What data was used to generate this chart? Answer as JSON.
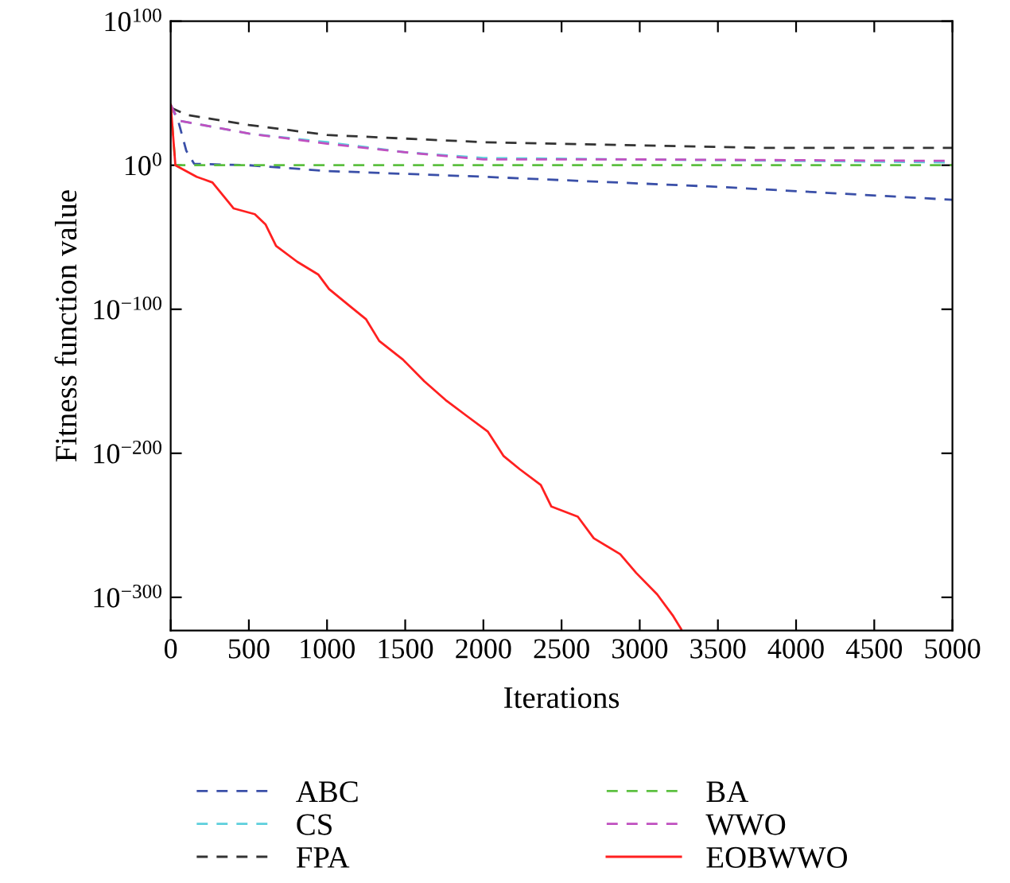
{
  "chart_data": {
    "type": "line",
    "xlabel": "Iterations",
    "ylabel": "Fitness function value",
    "log": "y",
    "xlim": [
      0,
      5000
    ],
    "xticks": [
      0,
      500,
      1000,
      1500,
      2000,
      2500,
      3000,
      3500,
      4000,
      4500,
      5000
    ],
    "ylim": [
      1e-323,
      1e+100
    ],
    "yticks": [
      {
        "value": 1e+100,
        "label": "10$^{100}$"
      },
      {
        "value": 1,
        "label": "10$^{0}$"
      },
      {
        "value": 1e-100,
        "label": "10$^{−100}$"
      },
      {
        "value": 1e-200,
        "label": "10$^{−200}$"
      },
      {
        "value": 1e-300,
        "label": "10$^{−300}$"
      }
    ],
    "grid": false,
    "legend": "bottom",
    "marker": "none",
    "series": [
      {
        "name": "ABC",
        "color": "#3a4fa8",
        "line_style": "dashed",
        "x": [
          0,
          50,
          100,
          150,
          500,
          1000,
          2000,
          3500,
          5000
        ],
        "values": [
          1e+42,
          1e+30,
          10000000000.0,
          10.0,
          1.0,
          0.0001,
          1e-08,
          1e-15,
          1e-24
        ]
      },
      {
        "name": "CS",
        "color": "#5ccfdc",
        "line_style": "dashed",
        "x": [
          0,
          50,
          500,
          1000,
          1500,
          2000,
          3000,
          5000
        ],
        "values": [
          1e+42,
          1e+31,
          1e+22,
          1e+16,
          1000000000.0,
          100000.0,
          10000.0,
          100.0
        ]
      },
      {
        "name": "FPA",
        "color": "#333333",
        "line_style": "dashed",
        "x": [
          0,
          100,
          500,
          1000,
          2000,
          3800,
          5000
        ],
        "values": [
          1e+40,
          1e+35,
          1e+28,
          1e+21,
          1e+16,
          1000000000000.0,
          1000000000000.0
        ]
      },
      {
        "name": "BA",
        "color": "#5cc040",
        "line_style": "dashed",
        "x": [
          0,
          30,
          1000,
          5000
        ],
        "values": [
          1e+42,
          1.0,
          1.0,
          1.0
        ]
      },
      {
        "name": "WWO",
        "color": "#c050c0",
        "line_style": "dashed",
        "x": [
          0,
          50,
          500,
          1000,
          1500,
          2000,
          3000,
          5000
        ],
        "values": [
          1e+42,
          1e+31,
          1e+22,
          1000000000000000.0,
          1000000000.0,
          10000.0,
          10000.0,
          1000.0
        ]
      },
      {
        "name": "EOBWWO",
        "color": "#ff2020",
        "line_style": "solid",
        "x": [
          0,
          30,
          166,
          267,
          403,
          538,
          606,
          674,
          809,
          945,
          1013,
          1148,
          1250,
          1334,
          1486,
          1622,
          1758,
          1893,
          2029,
          2130,
          2232,
          2367,
          2435,
          2604,
          2706,
          2875,
          2977,
          3112,
          3214,
          3265
        ],
        "values": [
          1e+42,
          1.0,
          1e-08,
          1e-12,
          1e-30,
          1e-34,
          1e-41,
          1e-56,
          1e-67,
          1e-76,
          1e-86,
          1e-98,
          1e-107,
          1e-122,
          1e-135,
          1e-150,
          1e-163,
          1e-174,
          1e-185,
          1e-202,
          1e-211,
          1e-222,
          1e-237,
          1e-244,
          1e-259,
          1e-270,
          1e-283,
          1e-298,
          1e-313,
          1e-322
        ]
      }
    ]
  }
}
